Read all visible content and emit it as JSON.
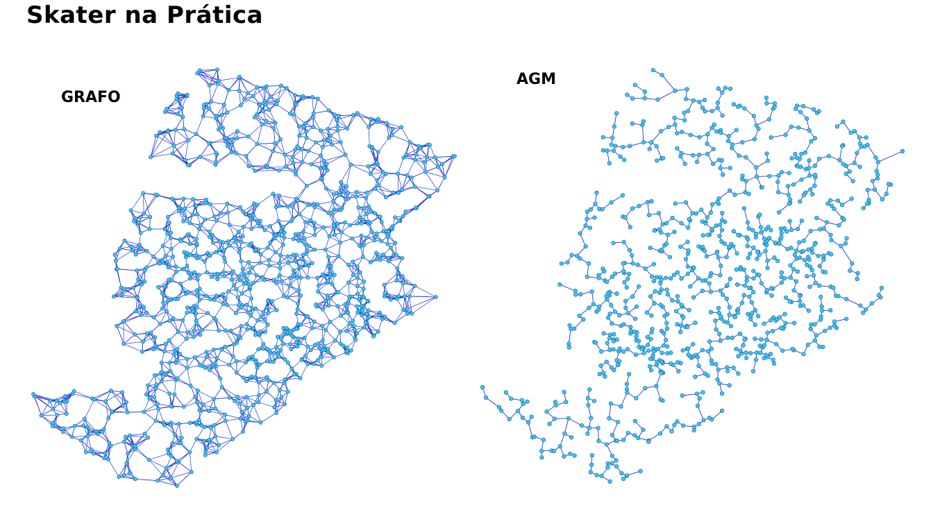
{
  "title": "Skater na Prática",
  "panels": [
    {
      "label": "GRAFO"
    },
    {
      "label": "AGM"
    }
  ],
  "colors": {
    "edge": "#1f2fd6",
    "node_fill": "#3fc4f0",
    "node_stroke": "#0a5a9c"
  }
}
